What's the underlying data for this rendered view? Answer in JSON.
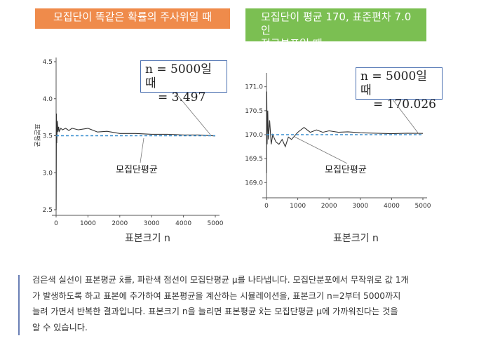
{
  "panels": [
    {
      "banner": "모집단이 똑같은 확률의 주사위일 때",
      "annotation_line1": "n = 5000일 때",
      "annotation_line2": "= 3.497",
      "pop_mean_label": "모집단평균"
    },
    {
      "banner_line1": "모집단이 평균 170, 표준편차 7.0인",
      "banner_line2": "정규분포일 때",
      "annotation_line1": "n = 5000일 때",
      "annotation_line2": "= 170.026",
      "pop_mean_label": "모집단평균"
    }
  ],
  "chart_data": [
    {
      "type": "line",
      "xlabel": "표본크기 n",
      "ylabel": "표본평균",
      "xlim": [
        0,
        5000
      ],
      "ylim": [
        2.5,
        4.5
      ],
      "xticks": [
        "0",
        "1000",
        "2000",
        "3000",
        "4000",
        "5000"
      ],
      "yticks": [
        "2.5",
        "3.0",
        "3.5",
        "4.0",
        "4.5"
      ],
      "series": [
        {
          "style": "solid",
          "color": "#333333",
          "x": [
            2,
            10,
            20,
            40,
            60,
            80,
            100,
            150,
            200,
            300,
            400,
            500,
            700,
            1000,
            1300,
            1600,
            2000,
            2500,
            3000,
            3500,
            4000,
            4500,
            5000
          ],
          "y": [
            2.5,
            3.8,
            3.4,
            3.7,
            3.55,
            3.62,
            3.56,
            3.6,
            3.58,
            3.6,
            3.57,
            3.6,
            3.58,
            3.6,
            3.55,
            3.56,
            3.53,
            3.53,
            3.52,
            3.52,
            3.51,
            3.51,
            3.497
          ]
        },
        {
          "style": "dashed",
          "color": "#3a8fd0",
          "x": [
            0,
            5000
          ],
          "y": [
            3.5,
            3.5
          ]
        }
      ]
    },
    {
      "type": "line",
      "xlabel": "표본크기 n",
      "ylabel": "",
      "xlim": [
        0,
        5000
      ],
      "ylim": [
        168.8,
        171.2
      ],
      "xticks": [
        "0",
        "1000",
        "2000",
        "3000",
        "4000",
        "5000"
      ],
      "yticks": [
        "169.0",
        "169.5",
        "170.0",
        "170.5",
        "171.0"
      ],
      "series": [
        {
          "style": "solid",
          "color": "#333333",
          "x": [
            2,
            10,
            20,
            40,
            60,
            100,
            150,
            200,
            300,
            400,
            500,
            600,
            700,
            800,
            1000,
            1200,
            1400,
            1600,
            1800,
            2000,
            2300,
            2600,
            3000,
            3500,
            4000,
            4500,
            5000
          ],
          "y": [
            169.2,
            170.9,
            169.8,
            170.5,
            169.9,
            170.3,
            169.8,
            170.0,
            169.85,
            169.8,
            169.9,
            169.75,
            169.95,
            169.9,
            170.05,
            170.15,
            170.05,
            170.1,
            170.05,
            170.08,
            170.05,
            170.06,
            170.04,
            170.03,
            170.02,
            170.03,
            170.026
          ]
        },
        {
          "style": "dashed",
          "color": "#3a8fd0",
          "x": [
            0,
            5000
          ],
          "y": [
            170.0,
            170.0
          ]
        }
      ]
    }
  ],
  "caption": {
    "line1": "검은색 실선이 표본평균 x̄를, 파란색 점선이 모집단평균 μ를 나타냅니다. 모집단분포에서 무작위로 값 1개",
    "line2": "가 발생하도록 하고 표본에 추가하여 표본평균을 계산하는 시뮬레이션을, 표본크기 n=2부터 5000까지",
    "line3": "늘려 가면서 반복한 결과입니다. 표본크기 n을 늘리면 표본평균 x̄는 모집단평균 μ에 가까워진다는 것을",
    "line4": "알 수 있습니다."
  }
}
